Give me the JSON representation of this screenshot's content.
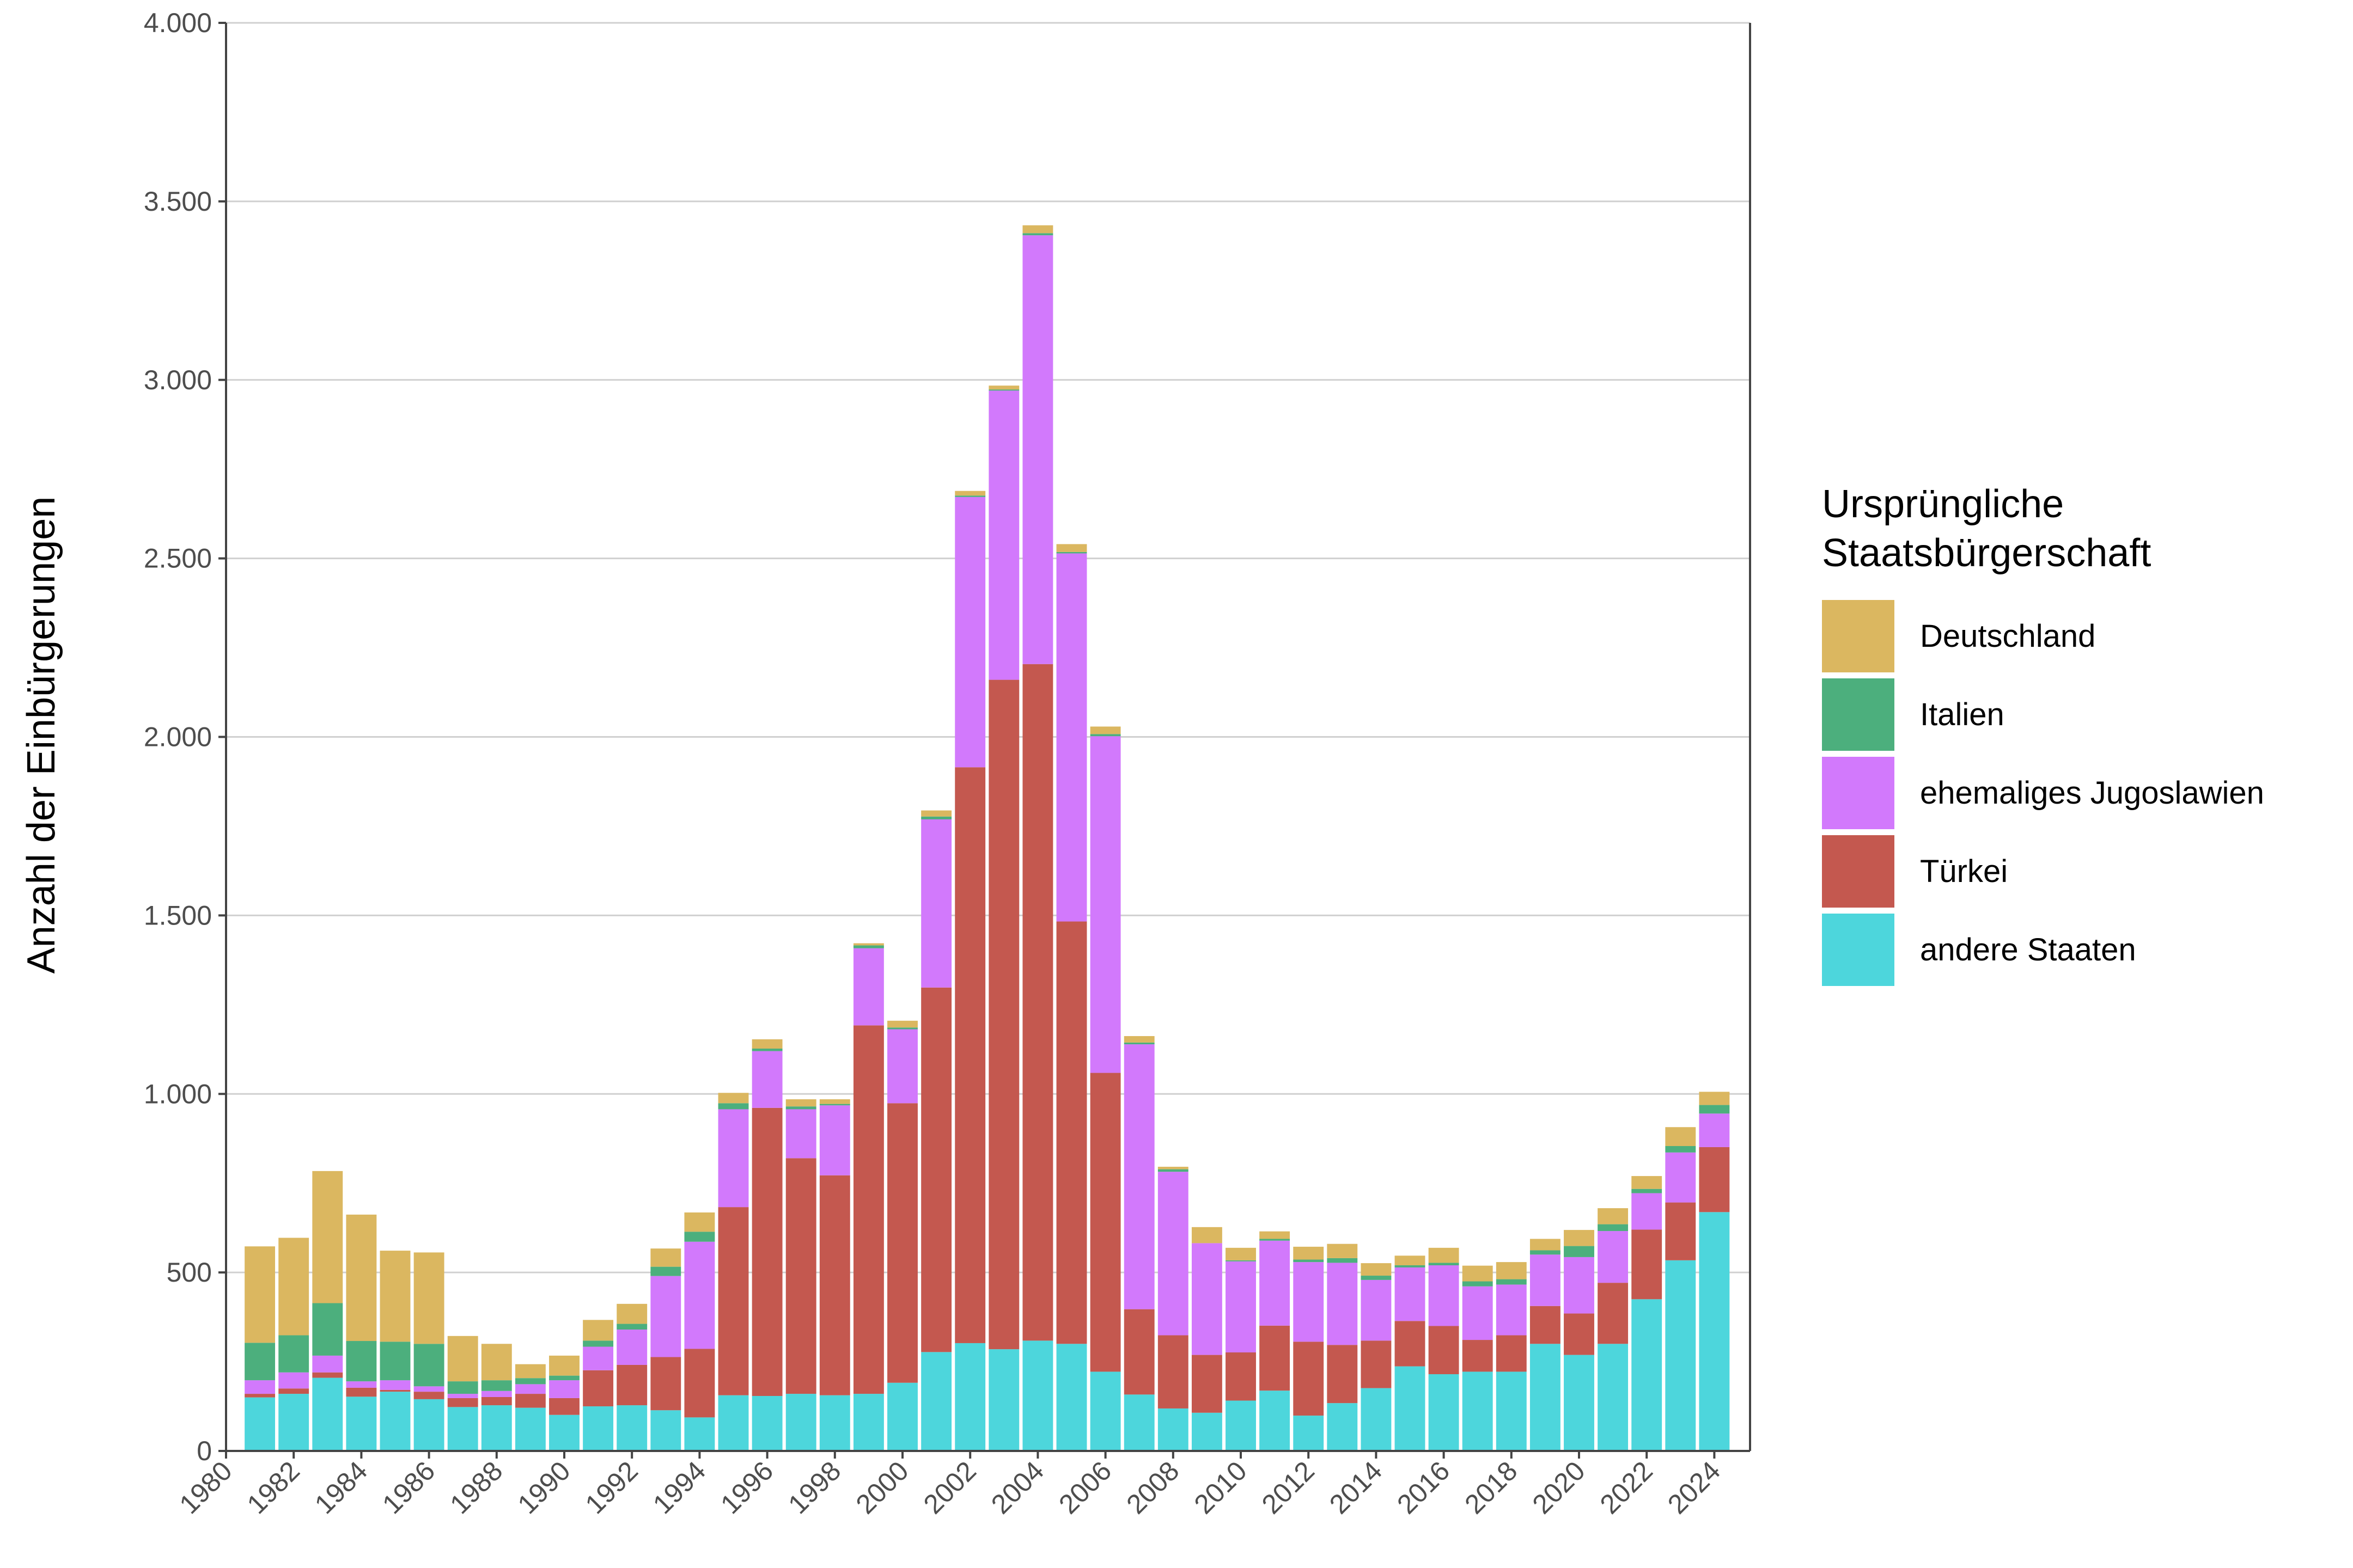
{
  "chart_data": {
    "type": "bar",
    "stacked": true,
    "title": "",
    "xlabel": "",
    "ylabel": "Anzahl der Einbürgerungen",
    "ylim": [
      0,
      4000
    ],
    "yticks": [
      0,
      500,
      1000,
      1500,
      2000,
      2500,
      3000,
      3500,
      4000
    ],
    "ytick_labels": [
      "0",
      "500",
      "1.000",
      "1.500",
      "2.000",
      "2.500",
      "3.000",
      "3.500",
      "4.000"
    ],
    "xticks": [
      1980,
      1982,
      1984,
      1986,
      1988,
      1990,
      1992,
      1994,
      1996,
      1998,
      2000,
      2002,
      2004,
      2006,
      2008,
      2010,
      2012,
      2014,
      2016,
      2018,
      2020,
      2022,
      2024
    ],
    "grid": "horizontal",
    "legend_position": "right",
    "legend_title": [
      "Ursprüngliche",
      "Staatsbürgerschaft"
    ],
    "categories": [
      1981,
      1982,
      1983,
      1984,
      1985,
      1986,
      1987,
      1988,
      1989,
      1990,
      1991,
      1992,
      1993,
      1994,
      1995,
      1996,
      1997,
      1998,
      1999,
      2000,
      2001,
      2002,
      2003,
      2004,
      2005,
      2006,
      2007,
      2008,
      2009,
      2010,
      2011,
      2012,
      2013,
      2014,
      2015,
      2016,
      2017,
      2018,
      2019,
      2020,
      2021,
      2022,
      2023,
      2024
    ],
    "series": [
      {
        "name": "andere Staaten",
        "color": "#4dd6dc",
        "values": [
          150,
          160,
          205,
          152,
          166,
          145,
          123,
          128,
          121,
          101,
          125,
          128,
          114,
          94,
          156,
          154,
          160,
          156,
          160,
          191,
          277,
          302,
          285,
          309,
          300,
          222,
          158,
          119,
          107,
          141,
          169,
          99,
          134,
          176,
          237,
          215,
          222,
          222,
          300,
          269,
          300,
          425,
          534,
          669
        ]
      },
      {
        "name": "Türkei",
        "color": "#c4584f",
        "values": [
          10,
          15,
          15,
          25,
          5,
          21,
          25,
          23,
          39,
          47,
          101,
          113,
          149,
          192,
          527,
          807,
          660,
          616,
          1032,
          783,
          1021,
          1613,
          1875,
          1895,
          1183,
          837,
          239,
          205,
          162,
          135,
          182,
          207,
          163,
          133,
          127,
          135,
          89,
          102,
          106,
          116,
          171,
          195,
          162,
          182
        ]
      },
      {
        "name": "ehemaliges Jugoslawien",
        "color": "#d279fc",
        "values": [
          38,
          45,
          47,
          18,
          27,
          15,
          12,
          17,
          27,
          50,
          66,
          99,
          227,
          300,
          274,
          159,
          137,
          196,
          216,
          207,
          471,
          757,
          810,
          1201,
          1031,
          943,
          742,
          458,
          313,
          255,
          238,
          223,
          230,
          170,
          150,
          170,
          150,
          142,
          144,
          158,
          145,
          102,
          140,
          94
        ]
      },
      {
        "name": "Italien",
        "color": "#4caf7d",
        "values": [
          105,
          104,
          147,
          113,
          108,
          119,
          35,
          30,
          17,
          13,
          17,
          16,
          26,
          28,
          17,
          7,
          8,
          4,
          8,
          5,
          8,
          4,
          3,
          6,
          4,
          6,
          5,
          7,
          0,
          3,
          5,
          7,
          13,
          12,
          6,
          7,
          14,
          15,
          12,
          31,
          19,
          12,
          18,
          24
        ]
      },
      {
        "name": "Deutschland",
        "color": "#dbb760",
        "values": [
          270,
          273,
          370,
          354,
          255,
          256,
          127,
          102,
          39,
          56,
          58,
          56,
          51,
          54,
          29,
          26,
          20,
          13,
          6,
          19,
          17,
          13,
          11,
          22,
          22,
          21,
          18,
          7,
          45,
          35,
          21,
          36,
          40,
          35,
          27,
          42,
          44,
          48,
          32,
          45,
          45,
          36,
          53,
          37
        ]
      }
    ]
  }
}
